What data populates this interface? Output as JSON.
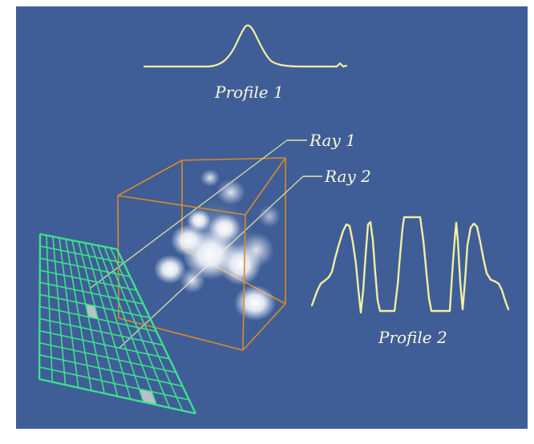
{
  "labels": {
    "profile_1": "Profile 1",
    "profile_2": "Profile 2",
    "ray_1": "Ray 1",
    "ray_2": "Ray 2"
  },
  "colors": {
    "background": "#3f5e97",
    "profile_curve": "#f3efa0",
    "label_text": "#fbf7df",
    "ray_line": "#e6e3a8",
    "volume_box": "#d98a2b",
    "image_grid": "#3ee08e",
    "highlighted_pixel": "#b9c0c8",
    "blobs": "#ffffff"
  },
  "grid": {
    "rows": 12,
    "cols": 12
  },
  "highlighted_pixels": [
    {
      "row": 5,
      "col": 5
    },
    {
      "row": 11,
      "col": 8
    }
  ]
}
